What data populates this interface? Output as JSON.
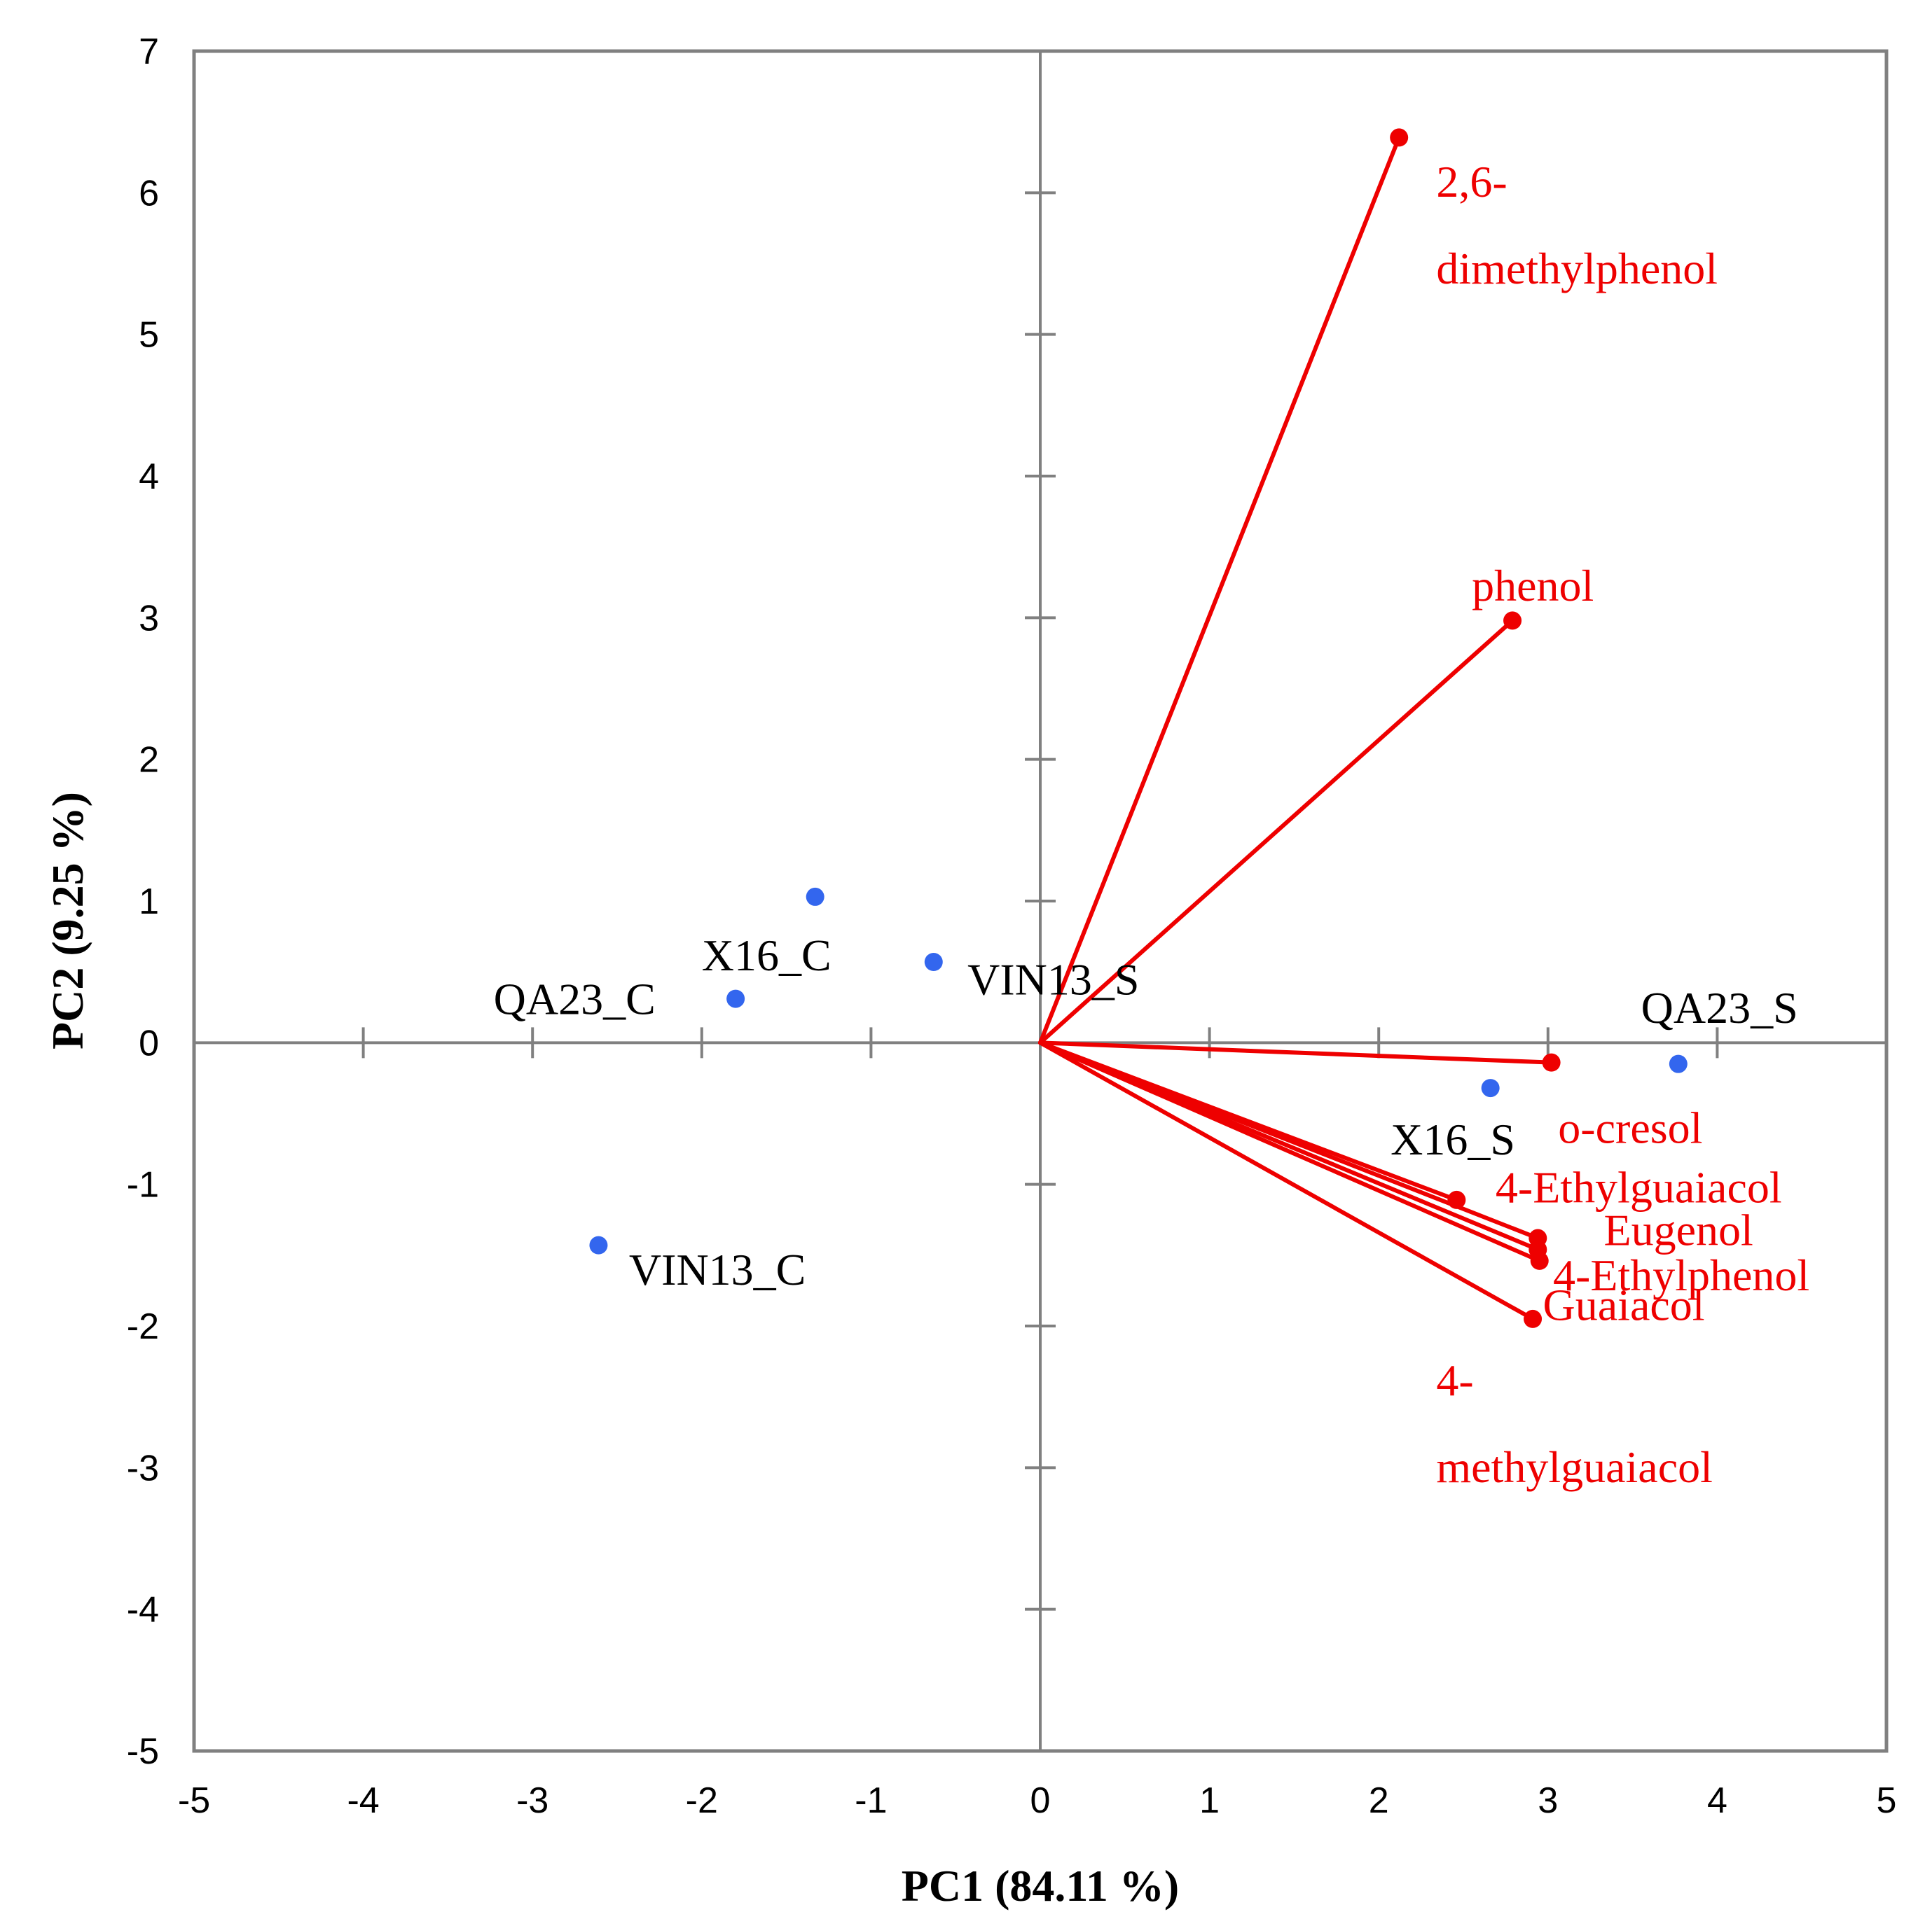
{
  "chart_data": {
    "type": "scatter",
    "title": "",
    "xlabel": "PC1 (84.11 %)",
    "ylabel": "PC2 (9.25 %)",
    "xlim": [
      -5,
      5
    ],
    "ylim": [
      -5,
      7
    ],
    "xticks": [
      -5,
      -4,
      -3,
      -2,
      -1,
      0,
      1,
      2,
      3,
      4,
      5
    ],
    "yticks": [
      -5,
      -4,
      -3,
      -2,
      -1,
      0,
      1,
      2,
      3,
      4,
      5,
      6,
      7
    ],
    "grid": false,
    "legend": "none",
    "colors": {
      "samples": "#3366ee",
      "variables": "#ee0000",
      "axes": "#808080",
      "text": "#000000"
    },
    "series": [
      {
        "name": "",
        "kind": "points",
        "points": [
          {
            "label": "X16_C",
            "x": -1.33,
            "y": 1.03
          },
          {
            "label": "VIN13_S",
            "x": -0.63,
            "y": 0.57
          },
          {
            "label": "QA23_C",
            "x": -1.8,
            "y": 0.31
          },
          {
            "label": "VIN13_C",
            "x": -2.61,
            "y": -1.43
          },
          {
            "label": "QA23_S",
            "x": 3.77,
            "y": -0.15
          },
          {
            "label": "X16_S",
            "x": 2.66,
            "y": -0.32
          }
        ]
      },
      {
        "name": "",
        "kind": "vectors",
        "points": [
          {
            "label": "2,6-\ndimethylphenol",
            "x": 2.12,
            "y": 6.39
          },
          {
            "label": "phenol",
            "x": 2.79,
            "y": 2.98
          },
          {
            "label": "o-cresol",
            "x": 3.02,
            "y": -0.14
          },
          {
            "label": "4-Ethylguaiacol",
            "x": 2.46,
            "y": -1.11
          },
          {
            "label": "Eugenol",
            "x": 2.94,
            "y": -1.38
          },
          {
            "label": "4-Ethylphenol",
            "x": 2.95,
            "y": -1.54
          },
          {
            "label": "Guaiacol",
            "x": 2.91,
            "y": -1.95
          },
          {
            "label": "4-\nmethylguaiacol",
            "x": 2.94,
            "y": -1.46
          }
        ]
      }
    ]
  }
}
